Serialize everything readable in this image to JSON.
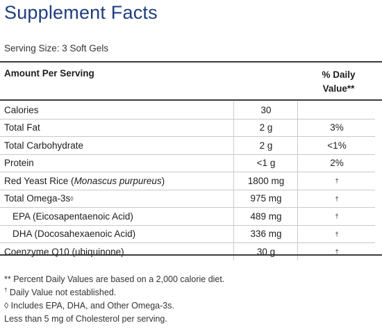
{
  "title": "Supplement Facts",
  "serving_size": "Serving Size: 3 Soft Gels",
  "header": {
    "amount_per_serving": "Amount Per Serving",
    "daily_value_line1": "% Daily",
    "daily_value_line2": "Value**"
  },
  "rows": [
    {
      "name": "Calories",
      "amount": "30",
      "dv": ""
    },
    {
      "name": "Total Fat",
      "amount": "2 g",
      "dv": "3%"
    },
    {
      "name": "Total Carbohydrate",
      "amount": "2 g",
      "dv": "<1%"
    },
    {
      "name": "Protein",
      "amount": "<1 g",
      "dv": "2%"
    },
    {
      "name_prefix": "Red Yeast Rice (",
      "name_italic": "Monascus purpureus",
      "name_suffix": ")",
      "amount": "1800 mg",
      "dv": "†"
    },
    {
      "name": "Total Omega-3s",
      "name_sup": "◊",
      "amount": "975 mg",
      "dv": "†"
    },
    {
      "name": "EPA (Eicosapentaenoic Acid)",
      "amount": "489 mg",
      "dv": "†"
    },
    {
      "name": "DHA (Docosahexaenoic Acid)",
      "amount": "336 mg",
      "dv": "†"
    },
    {
      "name": "Coenzyme Q10 (ubiquinone)",
      "amount": "30 g",
      "dv": "†"
    }
  ],
  "footnotes": {
    "daily_values": "** Percent Daily Values are based on a 2,000 calorie diet.",
    "dagger_mark": "†",
    "dagger_text": " Daily Value not established.",
    "includes": "◊ Includes EPA, DHA, and Other Omega-3s.",
    "cholesterol": "Less than 5 mg of Cholesterol per serving."
  }
}
